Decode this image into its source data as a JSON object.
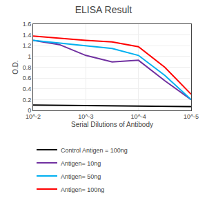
{
  "chart_data": {
    "type": "line",
    "title": "ELISA Result",
    "x_label": "Serial Dilutions of Antibody",
    "y_label": "O.D.",
    "xlim": [
      -2,
      -5
    ],
    "xticks": [
      {
        "value": -2,
        "label": "10^-2"
      },
      {
        "value": -3,
        "label": "10^-3"
      },
      {
        "value": -4,
        "label": "10^-4"
      },
      {
        "value": -5,
        "label": "10^-5"
      }
    ],
    "ylim": [
      0,
      1.6
    ],
    "yticks": [
      0,
      0.2,
      0.4,
      0.6,
      0.8,
      1,
      1.2,
      1.4,
      1.6
    ],
    "grid": true,
    "legend": "bottom",
    "series": [
      {
        "name": "Control Antigen = 100ng",
        "color": "#000000",
        "x": [
          -2,
          -3,
          -4,
          -5
        ],
        "values": [
          0.1,
          0.09,
          0.08,
          0.07
        ]
      },
      {
        "name": "Antigen= 10ng",
        "color": "#7030a0",
        "x": [
          -2,
          -2.5,
          -3,
          -3.5,
          -4,
          -4.5,
          -5
        ],
        "values": [
          1.3,
          1.22,
          1.02,
          0.9,
          0.93,
          0.55,
          0.2
        ]
      },
      {
        "name": "Antigen= 50ng",
        "color": "#00b0f0",
        "x": [
          -2,
          -2.5,
          -3,
          -3.5,
          -4,
          -4.5,
          -5
        ],
        "values": [
          1.3,
          1.25,
          1.2,
          1.15,
          1.02,
          0.65,
          0.2
        ]
      },
      {
        "name": "Antigen= 100ng",
        "color": "#ff0000",
        "x": [
          -2,
          -2.5,
          -3,
          -3.5,
          -4,
          -4.5,
          -5
        ],
        "values": [
          1.38,
          1.34,
          1.3,
          1.27,
          1.18,
          0.8,
          0.3
        ]
      }
    ]
  }
}
